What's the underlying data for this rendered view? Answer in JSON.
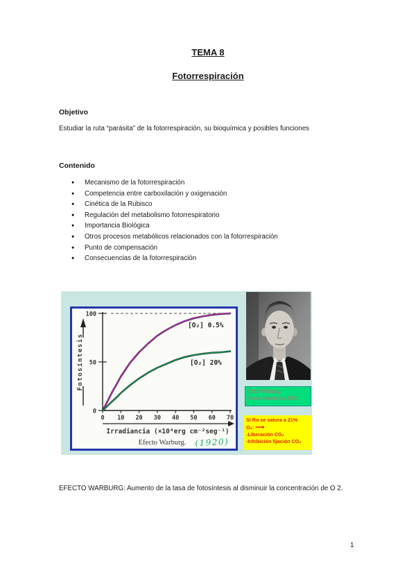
{
  "titles": {
    "line1": "TEMA 8",
    "line2": "Fotorrespiración"
  },
  "objetivo": {
    "heading": "Objetivo",
    "body": "Estudiar la ruta “parásita” de la fotorrespiración, su bioquímica y posibles funciones"
  },
  "contenido": {
    "heading": "Contenido",
    "bullet_icon": "●",
    "items": [
      "Mecanismo de la fotorrespiración",
      "Competencia entre carboxilación y oxigenación",
      "Cinética de la Rubisco",
      "Regulación del metabolismo fotorrespiratorio",
      "Importancia Biológica",
      "Otros procesos metabólicos relacionados con la fotorrespiración",
      "Punto de compensación",
      "Consecuencias de la fotorrespiración"
    ]
  },
  "figure": {
    "panel_color": "#c9e6e3",
    "chart_border_color": "#2635ad",
    "warburg_box": {
      "bg_color": "#00de7d",
      "line1": "Otto Warburg:",
      "line2": "Nobel medicina 1931"
    },
    "note_box": {
      "bg_color": "#ffff00",
      "text_color": "#e02500",
      "arrow_icon": "⟶",
      "line1": "Si Ro se satura a 21%",
      "line2": "O₂:",
      "line3": "-Liberación CO₂",
      "line4": "-Inhibición fijación CO₂"
    }
  },
  "chart_data": {
    "type": "line",
    "title": "Efecto Warburg.",
    "annotation": "(1920)",
    "xlabel": "Irradiancia (×10⁴erg cm⁻²seg⁻¹)",
    "ylabel": "Fotosíntesis",
    "xlim": [
      0,
      70
    ],
    "ylim": [
      0,
      100
    ],
    "xticks": [
      0,
      10,
      20,
      30,
      40,
      50,
      60,
      70
    ],
    "yticks": [
      0,
      50,
      100
    ],
    "dashed_line_y": 100,
    "grid": false,
    "legend_position": "inline-labels",
    "series": [
      {
        "name": "[O₂] 0.5%",
        "color": "#c32fc3",
        "points": [
          [
            0,
            0
          ],
          [
            2,
            7
          ],
          [
            5,
            18
          ],
          [
            8,
            28
          ],
          [
            10,
            35
          ],
          [
            15,
            49
          ],
          [
            20,
            60
          ],
          [
            25,
            69
          ],
          [
            30,
            77
          ],
          [
            35,
            83
          ],
          [
            40,
            88
          ],
          [
            45,
            92
          ],
          [
            50,
            95
          ],
          [
            55,
            97
          ],
          [
            60,
            98.5
          ],
          [
            65,
            99.5
          ],
          [
            70,
            100
          ]
        ]
      },
      {
        "name": "[O₂] 20%",
        "color": "#14a05a",
        "points": [
          [
            0,
            0
          ],
          [
            2,
            3.5
          ],
          [
            5,
            9
          ],
          [
            8,
            14
          ],
          [
            10,
            18
          ],
          [
            15,
            26
          ],
          [
            20,
            33
          ],
          [
            25,
            39
          ],
          [
            30,
            44
          ],
          [
            35,
            48
          ],
          [
            40,
            52
          ],
          [
            45,
            55
          ],
          [
            50,
            57
          ],
          [
            55,
            58.5
          ],
          [
            60,
            59.5
          ],
          [
            65,
            60
          ],
          [
            70,
            61
          ]
        ]
      }
    ]
  },
  "footer": {
    "text": "EFECTO WARBURG: Aumento de la tasa de fotosíntesis al disminuir la concentración de O 2.",
    "page_number": "1"
  }
}
